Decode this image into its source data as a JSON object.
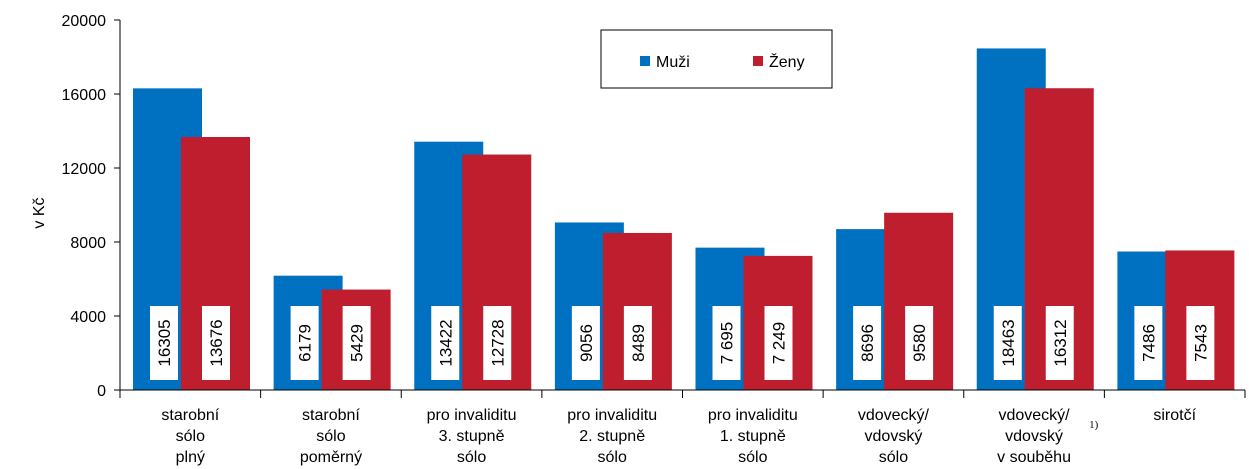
{
  "chart_data": {
    "type": "bar",
    "categories": [
      [
        "starobní",
        "sólo",
        "plný"
      ],
      [
        "starobní",
        "sólo",
        "poměrný"
      ],
      [
        "pro invaliditu",
        "3. stupně",
        "sólo"
      ],
      [
        "pro invaliditu",
        "2. stupně",
        "sólo"
      ],
      [
        "pro invaliditu",
        "1. stupně",
        "sólo"
      ],
      [
        "vdovecký/",
        "vdovský",
        "sólo"
      ],
      [
        "vdovecký/",
        "vdovský",
        "v souběhu"
      ],
      [
        "sirotčí"
      ]
    ],
    "series": [
      {
        "name": "Muži",
        "color": "#0070c0",
        "values": [
          16305,
          6179,
          13422,
          9056,
          7695,
          8696,
          18463,
          7486
        ],
        "value_labels": [
          "16305",
          "6179",
          "13422",
          "9056",
          "7 695",
          "8696",
          "18463",
          "7486"
        ]
      },
      {
        "name": "Ženy",
        "color": "#be1e2d",
        "values": [
          13676,
          5429,
          12728,
          8489,
          7249,
          9580,
          16312,
          7543
        ],
        "value_labels": [
          "13676",
          "5429",
          "12728",
          "8489",
          "7 249",
          "9580",
          "16312",
          "7543"
        ]
      }
    ],
    "ylabel": "v Kč",
    "annotation": "1)",
    "ylim": [
      0,
      20000
    ],
    "yticks": [
      0,
      4000,
      8000,
      12000,
      16000,
      20000
    ],
    "legend": "top"
  }
}
